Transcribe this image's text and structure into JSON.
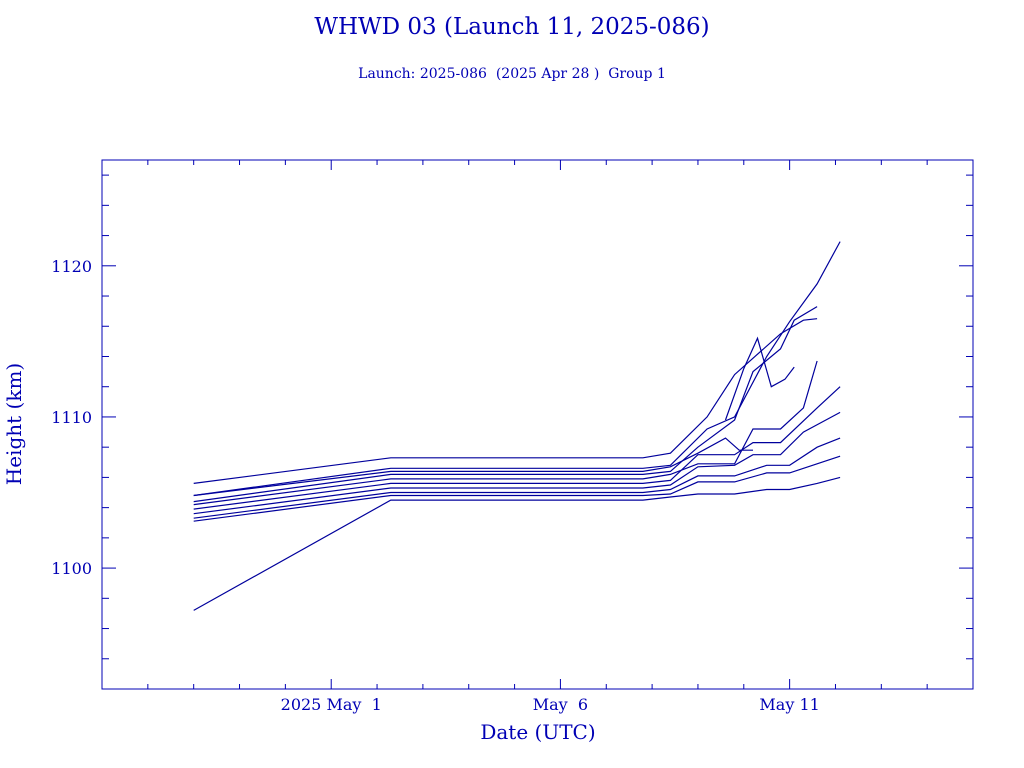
{
  "chart_data": {
    "type": "line",
    "title": "WHWD 03 (Launch 11, 2025-086)",
    "subtitle": "Launch: 2025-086  (2025 Apr 28 )  Group 1",
    "xlabel": "Date (UTC)",
    "ylabel": "Height (km)",
    "x_ticks": [
      "2025 May  1",
      "May  6",
      "May 11"
    ],
    "y_ticks": [
      "1100",
      "1110",
      "1120"
    ],
    "x_unit": "days since 2025 Apr 28",
    "xlim": [
      -2,
      17
    ],
    "ylim": [
      1092,
      1127
    ],
    "colors": {
      "axis": "#0000b4",
      "series": "#00009c"
    },
    "series": [
      {
        "x": [
          0.0,
          4.3,
          9.8,
          10.4,
          11.2,
          11.8,
          12.8,
          13.3,
          13.6
        ],
        "y": [
          1105.6,
          1107.3,
          1107.3,
          1107.6,
          1110.0,
          1112.8,
          1115.5,
          1116.4,
          1116.5
        ]
      },
      {
        "x": [
          0.0,
          4.3,
          9.8,
          10.4,
          11.2,
          11.8,
          12.5,
          13.0,
          13.6,
          14.1
        ],
        "y": [
          1104.8,
          1106.6,
          1106.6,
          1106.8,
          1109.2,
          1110.0,
          1114.0,
          1116.3,
          1118.8,
          1121.6
        ]
      },
      {
        "x": [
          0.0,
          4.3,
          9.8,
          10.4,
          11.0,
          11.8,
          12.2,
          12.8,
          13.1,
          13.6
        ],
        "y": [
          1104.4,
          1106.2,
          1106.2,
          1106.4,
          1108.0,
          1109.8,
          1113.0,
          1114.5,
          1116.4,
          1117.3
        ]
      },
      {
        "x": [
          0.0,
          4.3,
          9.8,
          10.4,
          11.0,
          11.8,
          12.2,
          12.8,
          13.3,
          13.6
        ],
        "y": [
          1104.2,
          1105.9,
          1105.9,
          1106.2,
          1106.9,
          1106.9,
          1109.2,
          1109.2,
          1110.6,
          1113.7
        ]
      },
      {
        "x": [
          0.0,
          4.3,
          9.8,
          10.4,
          11.0,
          11.8,
          12.2,
          12.8,
          13.6,
          14.1
        ],
        "y": [
          1103.9,
          1105.6,
          1105.6,
          1105.8,
          1107.5,
          1107.5,
          1108.3,
          1108.3,
          1110.6,
          1112.0
        ]
      },
      {
        "x": [
          0.0,
          4.3,
          9.8,
          10.4,
          11.0,
          11.8,
          12.2,
          12.8,
          13.3,
          14.1
        ],
        "y": [
          1103.6,
          1105.3,
          1105.3,
          1105.5,
          1106.7,
          1106.8,
          1107.5,
          1107.5,
          1109.0,
          1110.3
        ]
      },
      {
        "x": [
          0.0,
          4.3,
          9.8,
          10.4,
          11.0,
          11.8,
          12.5,
          13.0,
          13.6,
          14.1
        ],
        "y": [
          1103.3,
          1105.0,
          1105.0,
          1105.2,
          1106.1,
          1106.1,
          1106.8,
          1106.8,
          1108.0,
          1108.6
        ]
      },
      {
        "x": [
          0.0,
          4.3,
          9.8,
          10.4,
          11.0,
          11.8,
          12.5,
          13.0,
          13.6,
          14.1
        ],
        "y": [
          1103.1,
          1104.8,
          1104.8,
          1104.9,
          1105.7,
          1105.7,
          1106.3,
          1106.3,
          1106.9,
          1107.4
        ]
      },
      {
        "x": [
          0.0,
          4.3,
          9.8,
          10.4,
          11.0,
          11.8,
          12.5,
          13.0,
          13.6,
          14.1
        ],
        "y": [
          1097.2,
          1104.5,
          1104.5,
          1104.7,
          1104.9,
          1104.9,
          1105.2,
          1105.2,
          1105.6,
          1106.0
        ]
      },
      {
        "x": [
          0.0,
          4.3,
          9.8,
          10.4,
          11.0,
          11.6,
          11.9,
          12.2
        ],
        "y": [
          1104.8,
          1106.4,
          1106.4,
          1106.7,
          1107.6,
          1108.6,
          1107.8,
          1107.8
        ]
      },
      {
        "x": [
          11.6,
          12.0,
          12.3,
          12.6,
          12.9,
          13.1
        ],
        "y": [
          1109.8,
          1113.2,
          1115.2,
          1112.0,
          1112.5,
          1113.3
        ]
      }
    ]
  }
}
